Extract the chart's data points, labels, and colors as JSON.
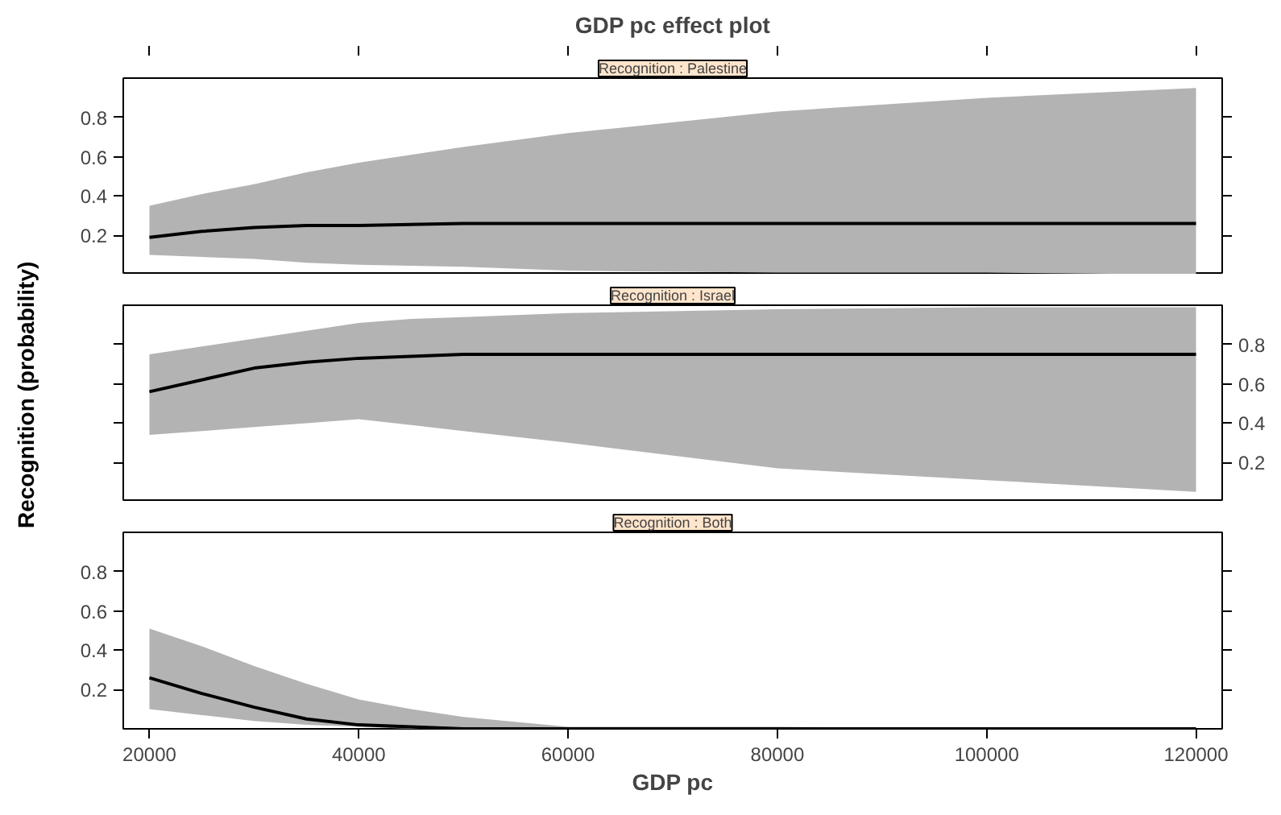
{
  "chart_data": [
    {
      "type": "line",
      "title": "GDP pc effect plot",
      "subtitle": "Recognition : Palestine",
      "xlim": [
        17500,
        122500
      ],
      "xticks": [
        20000,
        40000,
        60000,
        80000,
        100000,
        120000
      ],
      "ylim": [
        0,
        1
      ],
      "yticks": [
        0.2,
        0.4,
        0.6,
        0.8
      ],
      "tick_labels": "y",
      "grid": false,
      "series": [
        {
          "color": "#000000",
          "x": [
            20000,
            25000,
            30000,
            35000,
            40000,
            50000,
            60000,
            80000,
            100000,
            120000
          ],
          "values": [
            0.19,
            0.22,
            0.24,
            0.25,
            0.25,
            0.26,
            0.26,
            0.26,
            0.26,
            0.26
          ],
          "lower": [
            0.1,
            0.09,
            0.08,
            0.06,
            0.05,
            0.04,
            0.02,
            0.01,
            0.01,
            0.0
          ],
          "upper": [
            0.35,
            0.41,
            0.46,
            0.52,
            0.57,
            0.65,
            0.72,
            0.83,
            0.9,
            0.95
          ]
        }
      ]
    },
    {
      "type": "line",
      "subtitle": "Recognition : Israel",
      "ylabel": "Recognition (probability)",
      "xlim": [
        17500,
        122500
      ],
      "y2lim": [
        0,
        1
      ],
      "y2ticks": [
        0.2,
        0.4,
        0.6,
        0.8
      ],
      "tick_labels": "y",
      "grid": false,
      "series": [
        {
          "axis": "y2",
          "color": "#000000",
          "x": [
            20000,
            25000,
            30000,
            35000,
            40000,
            45000,
            50000,
            60000,
            80000,
            100000,
            120000
          ],
          "values": [
            0.56,
            0.62,
            0.68,
            0.71,
            0.73,
            0.74,
            0.75,
            0.75,
            0.75,
            0.75,
            0.75
          ],
          "lower": [
            0.34,
            0.36,
            0.38,
            0.4,
            0.42,
            0.39,
            0.36,
            0.3,
            0.17,
            0.11,
            0.05
          ],
          "upper": [
            0.75,
            0.79,
            0.83,
            0.87,
            0.91,
            0.93,
            0.94,
            0.96,
            0.98,
            0.99,
            0.99
          ]
        }
      ]
    },
    {
      "type": "line",
      "subtitle": "Recognition : Both",
      "xlabel": "GDP pc",
      "xlim": [
        17500,
        122500
      ],
      "xticks": [
        20000,
        40000,
        60000,
        80000,
        100000,
        120000
      ],
      "ylim": [
        0,
        1
      ],
      "yticks": [
        0.2,
        0.4,
        0.6,
        0.8
      ],
      "grid": false,
      "series": [
        {
          "color": "#000000",
          "x": [
            20000,
            25000,
            30000,
            35000,
            40000,
            45000,
            50000,
            60000,
            80000,
            100000,
            120000
          ],
          "values": [
            0.26,
            0.18,
            0.11,
            0.05,
            0.02,
            0.01,
            0.0,
            0.0,
            0.0,
            0.0,
            0.0
          ],
          "lower": [
            0.1,
            0.07,
            0.04,
            0.02,
            0.01,
            0.0,
            0.0,
            0.0,
            0.0,
            0.0,
            0.0
          ],
          "upper": [
            0.51,
            0.42,
            0.32,
            0.23,
            0.15,
            0.1,
            0.06,
            0.01,
            0.01,
            0.0,
            0.0
          ]
        }
      ]
    }
  ]
}
